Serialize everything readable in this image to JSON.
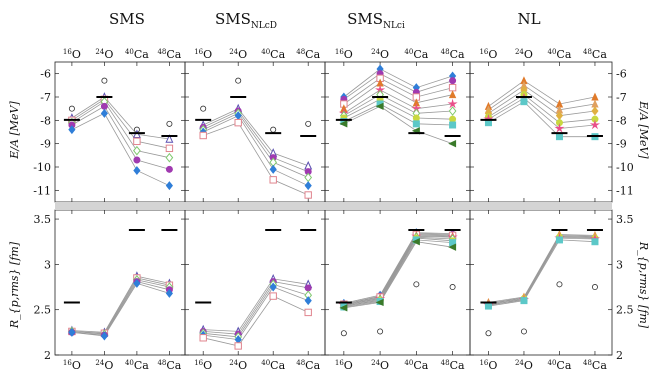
{
  "figure": {
    "columns": [
      {
        "title": "SMS",
        "subscript": ""
      },
      {
        "title": "SMS",
        "subscript": "NLcD"
      },
      {
        "title": "SMS",
        "subscript": "NLci"
      },
      {
        "title": "NL",
        "subscript": ""
      }
    ],
    "nuclei": [
      {
        "mass": "16",
        "symbol": "O"
      },
      {
        "mass": "24",
        "symbol": "O"
      },
      {
        "mass": "40",
        "symbol": "Ca"
      },
      {
        "mass": "48",
        "symbol": "Ca"
      }
    ],
    "top_ylabel": "E/A [MeV]",
    "bottom_ylabel": "R_{p,rms} [fm]",
    "top_ticks": [
      "-6",
      "-7",
      "-8",
      "-9",
      "-10",
      "-11"
    ],
    "bottom_ticks": [
      "3.5",
      "3",
      "2.5",
      "2"
    ]
  },
  "chart_data": [
    {
      "type": "line",
      "title": "SMS",
      "ylabel": "E/A [MeV]",
      "ylim": [
        -11.5,
        -5.5
      ],
      "categories": [
        "16O",
        "24O",
        "40Ca",
        "48Ca"
      ],
      "experiment": [
        -7.98,
        -7.0,
        -8.55,
        -8.67
      ],
      "reference": [
        -7.5,
        -6.3,
        -8.4,
        -8.15
      ],
      "series": [
        {
          "values": [
            -7.9,
            -7.0,
            -8.6,
            -8.8
          ],
          "color": "#5a4fb0",
          "marker": "triangle-open"
        },
        {
          "values": [
            -8.0,
            -7.1,
            -8.9,
            -9.2
          ],
          "color": "#e0848e",
          "marker": "square-open"
        },
        {
          "values": [
            -8.1,
            -7.2,
            -9.3,
            -9.6
          ],
          "color": "#7fc86e",
          "marker": "diamond-open"
        },
        {
          "values": [
            -8.2,
            -7.4,
            -9.7,
            -10.1
          ],
          "color": "#a03ab0",
          "marker": "circle"
        },
        {
          "values": [
            -8.4,
            -7.7,
            -10.15,
            -10.8
          ],
          "color": "#2f7ed8",
          "marker": "diamond"
        }
      ]
    },
    {
      "type": "line",
      "title": "SMS_NLcD",
      "ylabel": "E/A [MeV]",
      "ylim": [
        -11.5,
        -5.5
      ],
      "categories": [
        "16O",
        "24O",
        "40Ca",
        "48Ca"
      ],
      "experiment": [
        -7.98,
        -7.0,
        -8.55,
        -8.67
      ],
      "reference": [
        -7.5,
        -6.3,
        -8.4,
        -8.15
      ],
      "series": [
        {
          "values": [
            -8.2,
            -7.5,
            -9.4,
            -9.95
          ],
          "color": "#5a4fb0",
          "marker": "triangle-open"
        },
        {
          "values": [
            -8.3,
            -7.6,
            -9.6,
            -10.2
          ],
          "color": "#a03ab0",
          "marker": "circle"
        },
        {
          "values": [
            -8.4,
            -7.7,
            -9.8,
            -10.45
          ],
          "color": "#7fc86e",
          "marker": "diamond-open"
        },
        {
          "values": [
            -8.5,
            -7.8,
            -10.1,
            -10.8
          ],
          "color": "#2f7ed8",
          "marker": "diamond"
        },
        {
          "values": [
            -8.65,
            -8.1,
            -10.55,
            -11.2
          ],
          "color": "#e0848e",
          "marker": "square-open"
        }
      ]
    },
    {
      "type": "line",
      "title": "SMS_NLci",
      "ylabel": "E/A [MeV]",
      "ylim": [
        -11.5,
        -5.5
      ],
      "categories": [
        "16O",
        "24O",
        "40Ca",
        "48Ca"
      ],
      "experiment": [
        -7.98,
        -7.0,
        -8.55,
        -8.67
      ],
      "reference": [],
      "series": [
        {
          "values": [
            -7.0,
            -5.8,
            -6.6,
            -6.1
          ],
          "color": "#2f7ed8",
          "marker": "diamond"
        },
        {
          "values": [
            -7.1,
            -6.0,
            -6.8,
            -6.3
          ],
          "color": "#a03ab0",
          "marker": "circle"
        },
        {
          "values": [
            -7.3,
            -6.2,
            -7.0,
            -6.6
          ],
          "color": "#e0848e",
          "marker": "square-open"
        },
        {
          "values": [
            -7.5,
            -6.4,
            -7.25,
            -6.9
          ],
          "color": "#e07a2a",
          "marker": "triangle"
        },
        {
          "values": [
            -7.7,
            -6.7,
            -7.5,
            -7.3
          ],
          "color": "#e94f8a",
          "marker": "star"
        },
        {
          "values": [
            -7.8,
            -6.9,
            -7.7,
            -7.6
          ],
          "color": "#7fc86e",
          "marker": "diamond-open"
        },
        {
          "values": [
            -7.9,
            -7.1,
            -7.9,
            -7.95
          ],
          "color": "#c9d840",
          "marker": "circle"
        },
        {
          "values": [
            -8.05,
            -7.3,
            -8.15,
            -8.2
          ],
          "color": "#5cc8c8",
          "marker": "square"
        },
        {
          "values": [
            -8.15,
            -7.4,
            -8.45,
            -9.0
          ],
          "color": "#3a7a2a",
          "marker": "triangle-left"
        }
      ]
    },
    {
      "type": "line",
      "title": "NL",
      "ylabel": "E/A [MeV]",
      "ylim": [
        -11.5,
        -5.5
      ],
      "categories": [
        "16O",
        "24O",
        "40Ca",
        "48Ca"
      ],
      "experiment": [
        -7.98,
        -7.0,
        -8.55,
        -8.67
      ],
      "reference": [],
      "series": [
        {
          "values": [
            -7.4,
            -6.3,
            -7.3,
            -7.0
          ],
          "color": "#e07a2a",
          "marker": "triangle"
        },
        {
          "values": [
            -7.55,
            -6.5,
            -7.55,
            -7.3
          ],
          "color": "#e0a060",
          "marker": "triangle"
        },
        {
          "values": [
            -7.7,
            -6.7,
            -7.8,
            -7.6
          ],
          "color": "#e0b040",
          "marker": "diamond"
        },
        {
          "values": [
            -7.85,
            -6.9,
            -8.1,
            -7.95
          ],
          "color": "#c9d840",
          "marker": "circle"
        },
        {
          "values": [
            -7.95,
            -7.05,
            -8.35,
            -8.2
          ],
          "color": "#e94f8a",
          "marker": "star"
        },
        {
          "values": [
            -8.1,
            -7.2,
            -8.7,
            -8.7
          ],
          "color": "#5cc8c8",
          "marker": "square"
        }
      ]
    },
    {
      "type": "line",
      "title": "SMS",
      "ylabel": "R_{p,rms} [fm]",
      "ylim": [
        2.0,
        3.6
      ],
      "categories": [
        "16O",
        "24O",
        "40Ca",
        "48Ca"
      ],
      "experiment": [
        2.58,
        null,
        3.38,
        3.38
      ],
      "reference": [],
      "series": [
        {
          "values": [
            2.27,
            2.25,
            2.87,
            2.79
          ],
          "color": "#5a4fb0",
          "marker": "triangle-open"
        },
        {
          "values": [
            2.26,
            2.24,
            2.85,
            2.77
          ],
          "color": "#e0848e",
          "marker": "square-open"
        },
        {
          "values": [
            2.26,
            2.23,
            2.83,
            2.75
          ],
          "color": "#7fc86e",
          "marker": "diamond-open"
        },
        {
          "values": [
            2.25,
            2.22,
            2.81,
            2.72
          ],
          "color": "#a03ab0",
          "marker": "circle"
        },
        {
          "values": [
            2.25,
            2.21,
            2.79,
            2.68
          ],
          "color": "#2f7ed8",
          "marker": "diamond"
        }
      ]
    },
    {
      "type": "line",
      "title": "SMS_NLcD",
      "ylabel": "R_{p,rms} [fm]",
      "ylim": [
        2.0,
        3.6
      ],
      "categories": [
        "16O",
        "24O",
        "40Ca",
        "48Ca"
      ],
      "experiment": [
        2.58,
        null,
        3.38,
        3.38
      ],
      "reference": [],
      "series": [
        {
          "values": [
            2.28,
            2.26,
            2.84,
            2.78
          ],
          "color": "#5a4fb0",
          "marker": "triangle-open"
        },
        {
          "values": [
            2.26,
            2.23,
            2.81,
            2.74
          ],
          "color": "#a03ab0",
          "marker": "circle"
        },
        {
          "values": [
            2.24,
            2.2,
            2.78,
            2.66
          ],
          "color": "#7fc86e",
          "marker": "diamond-open"
        },
        {
          "values": [
            2.22,
            2.17,
            2.75,
            2.6
          ],
          "color": "#2f7ed8",
          "marker": "diamond"
        },
        {
          "values": [
            2.19,
            2.1,
            2.65,
            2.47
          ],
          "color": "#e0848e",
          "marker": "square-open"
        }
      ]
    },
    {
      "type": "line",
      "title": "SMS_NLci",
      "ylabel": "R_{p,rms} [fm]",
      "ylim": [
        2.0,
        3.6
      ],
      "categories": [
        "16O",
        "24O",
        "40Ca",
        "48Ca"
      ],
      "experiment": [
        2.58,
        null,
        3.38,
        3.38
      ],
      "reference": [
        2.24,
        2.26,
        2.78,
        2.75
      ],
      "series": [
        {
          "values": [
            2.57,
            2.66,
            3.35,
            3.34
          ],
          "color": "#2f7ed8",
          "marker": "diamond"
        },
        {
          "values": [
            2.56,
            2.65,
            3.34,
            3.33
          ],
          "color": "#a03ab0",
          "marker": "circle"
        },
        {
          "values": [
            2.56,
            2.64,
            3.33,
            3.32
          ],
          "color": "#e0848e",
          "marker": "square-open"
        },
        {
          "values": [
            2.55,
            2.63,
            3.32,
            3.31
          ],
          "color": "#e07a2a",
          "marker": "triangle"
        },
        {
          "values": [
            2.55,
            2.62,
            3.31,
            3.3
          ],
          "color": "#e94f8a",
          "marker": "star"
        },
        {
          "values": [
            2.54,
            2.61,
            3.3,
            3.28
          ],
          "color": "#7fc86e",
          "marker": "diamond-open"
        },
        {
          "values": [
            2.54,
            2.6,
            3.29,
            3.26
          ],
          "color": "#c9d840",
          "marker": "circle"
        },
        {
          "values": [
            2.53,
            2.59,
            3.27,
            3.24
          ],
          "color": "#5cc8c8",
          "marker": "square"
        },
        {
          "values": [
            2.52,
            2.58,
            3.25,
            3.19
          ],
          "color": "#3a7a2a",
          "marker": "triangle-left"
        }
      ]
    },
    {
      "type": "line",
      "title": "NL",
      "ylabel": "R_{p,rms} [fm]",
      "ylim": [
        2.0,
        3.6
      ],
      "categories": [
        "16O",
        "24O",
        "40Ca",
        "48Ca"
      ],
      "experiment": [
        2.58,
        null,
        3.38,
        3.38
      ],
      "reference": [
        2.24,
        2.26,
        2.78,
        2.75
      ],
      "series": [
        {
          "values": [
            2.58,
            2.64,
            3.33,
            3.32
          ],
          "color": "#e07a2a",
          "marker": "triangle"
        },
        {
          "values": [
            2.57,
            2.63,
            3.32,
            3.31
          ],
          "color": "#e0a060",
          "marker": "triangle"
        },
        {
          "values": [
            2.56,
            2.63,
            3.31,
            3.3
          ],
          "color": "#e0b040",
          "marker": "diamond"
        },
        {
          "values": [
            2.55,
            2.62,
            3.3,
            3.29
          ],
          "color": "#c9d840",
          "marker": "circle"
        },
        {
          "values": [
            2.55,
            2.61,
            3.29,
            3.28
          ],
          "color": "#e94f8a",
          "marker": "star"
        },
        {
          "values": [
            2.54,
            2.6,
            3.27,
            3.25
          ],
          "color": "#5cc8c8",
          "marker": "square"
        }
      ]
    }
  ]
}
